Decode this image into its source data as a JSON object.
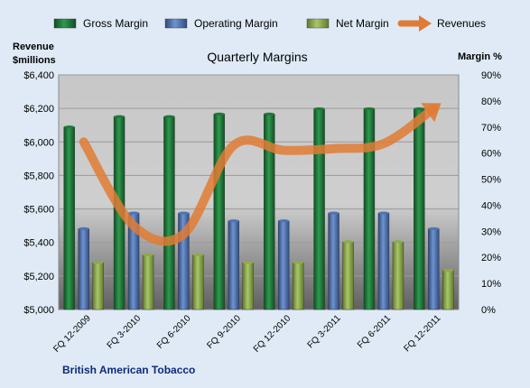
{
  "chart_data": {
    "type": "bar",
    "title": "Quarterly Margins",
    "company": "British American Tobacco",
    "left_axis_label": [
      "Revenue",
      "$millions"
    ],
    "right_axis_label": "Margin %",
    "categories": [
      "FQ 12-2009",
      "FQ 3-2010",
      "FQ 6-2010",
      "FQ 9-2010",
      "FQ 12-2010",
      "FQ 3-2011",
      "FQ 6-2011",
      "FQ 12-2011"
    ],
    "series": [
      {
        "name": "Gross Margin",
        "axis": "right",
        "kind": "bar",
        "color": "#1f7a3a",
        "values": [
          70,
          74,
          74,
          75,
          75,
          77,
          77,
          77
        ]
      },
      {
        "name": "Operating Margin",
        "axis": "right",
        "kind": "bar",
        "color": "#4f74b4",
        "values": [
          31,
          37,
          37,
          34,
          34,
          37,
          37,
          31
        ]
      },
      {
        "name": "Net Margin",
        "axis": "right",
        "kind": "bar",
        "color": "#8faa4a",
        "values": [
          18,
          21,
          21,
          18,
          18,
          26,
          26,
          15
        ]
      },
      {
        "name": "Revenues",
        "axis": "left",
        "kind": "line",
        "color": "#e07b35",
        "values": [
          6000,
          5500,
          5450,
          5980,
          5950,
          5960,
          5990,
          6200
        ]
      }
    ],
    "left_axis": {
      "min": 5000,
      "max": 6400,
      "ticks": [
        "$5,000",
        "$5,200",
        "$5,400",
        "$5,600",
        "$5,800",
        "$6,000",
        "$6,200",
        "$6,400"
      ]
    },
    "right_axis": {
      "min": 0,
      "max": 90,
      "ticks": [
        "0%",
        "10%",
        "20%",
        "30%",
        "40%",
        "50%",
        "60%",
        "70%",
        "80%",
        "90%"
      ]
    },
    "grid": true,
    "legend": "top"
  }
}
